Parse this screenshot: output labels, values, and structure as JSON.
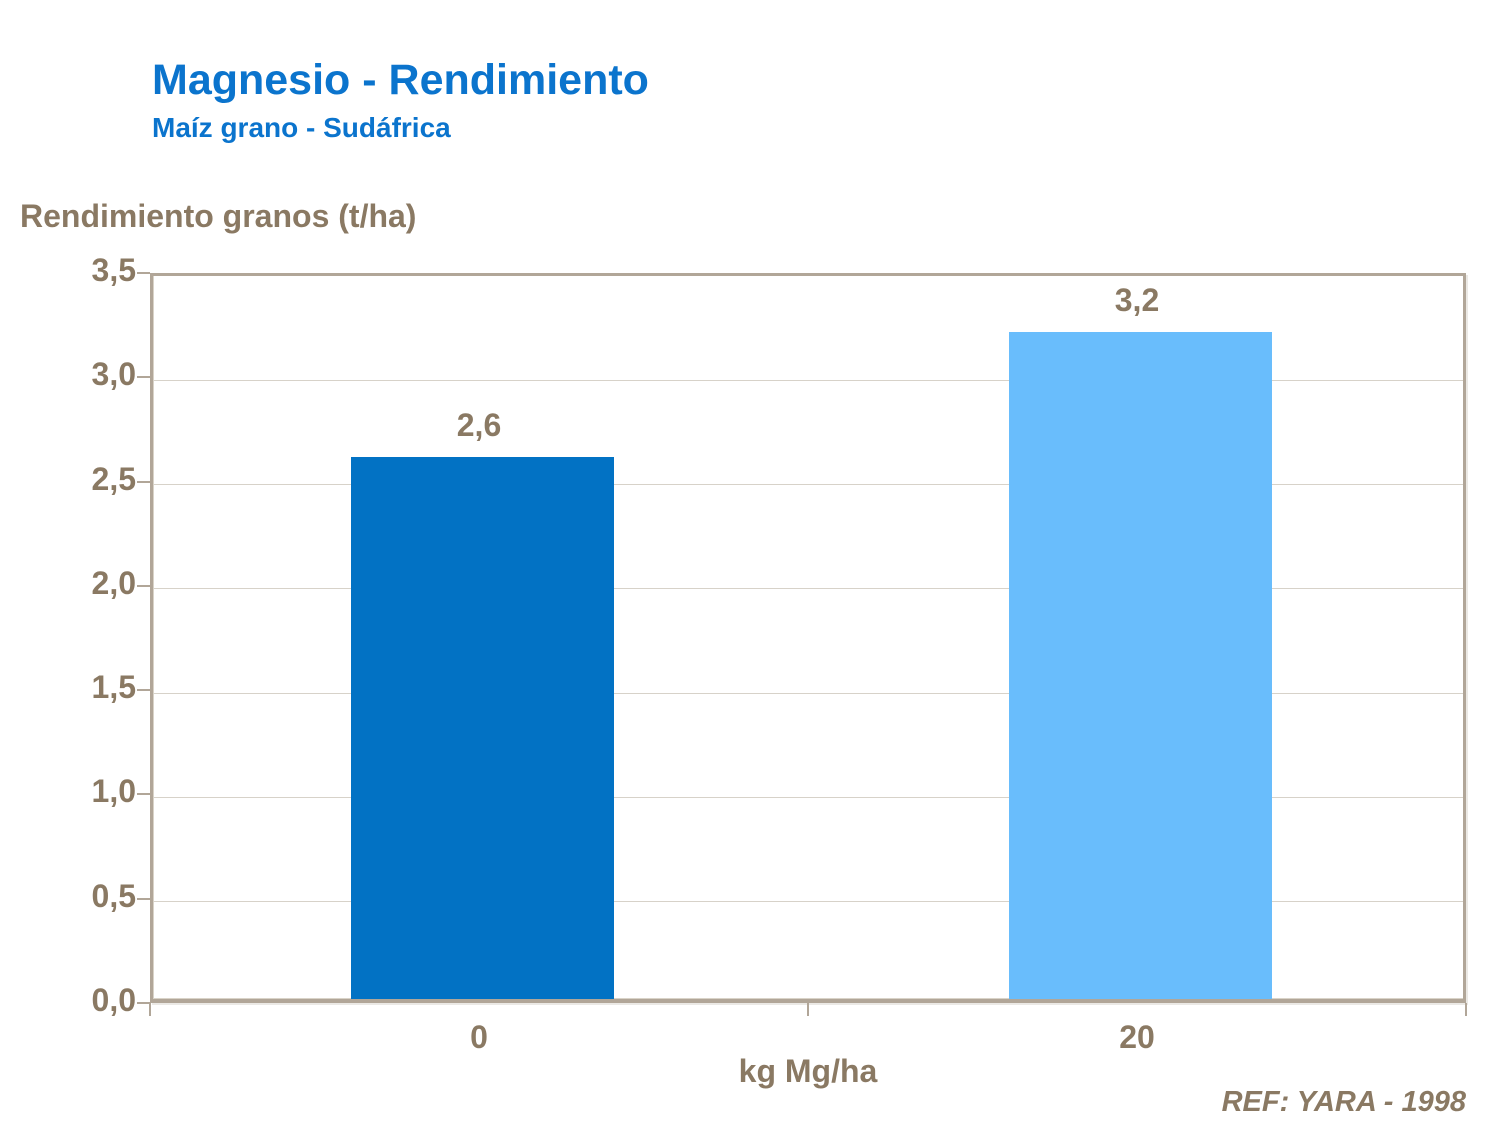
{
  "header": {
    "title": "Magnesio - Rendimiento",
    "subtitle": "Maíz grano - Sudáfrica"
  },
  "footer": {
    "ref": "REF: YARA - 1998"
  },
  "colors": {
    "title_blue": "#0b74cd",
    "text_brown": "#8a7963",
    "axis_tan": "#b1a698",
    "gridline": "#d7d2c9",
    "bar_dark_blue": "#0272c4",
    "bar_light_blue": "#69bdfc",
    "background": "#ffffff"
  },
  "chart_data": {
    "type": "bar",
    "title": "Magnesio - Rendimiento",
    "subtitle": "Maíz grano - Sudáfrica",
    "categories": [
      "0",
      "20"
    ],
    "values": [
      2.6,
      3.2
    ],
    "value_labels": [
      "2,6",
      "3,2"
    ],
    "bar_colors": [
      "#0272c4",
      "#69bdfc"
    ],
    "xlabel": "kg Mg/ha",
    "ylabel": "Rendimiento granos (t/ha)",
    "ylim": [
      0,
      3.5
    ],
    "ytick_step": 0.5,
    "ytick_labels": [
      "0,0",
      "0,5",
      "1,0",
      "1,5",
      "2,0",
      "2,5",
      "3,0",
      "3,5"
    ],
    "decimal_separator": ",",
    "grid": true,
    "legend": false,
    "annotations": [
      "REF: YARA - 1998"
    ]
  }
}
